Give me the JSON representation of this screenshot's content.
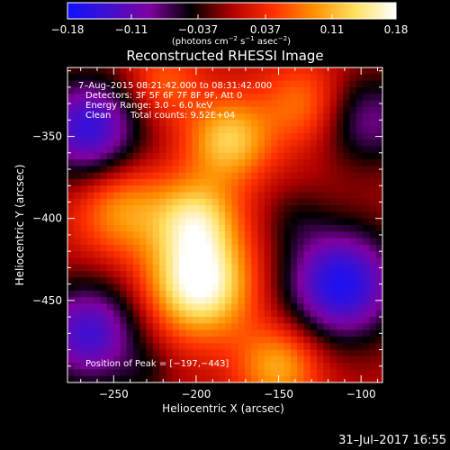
{
  "chart_data": {
    "type": "heatmap",
    "title": "Reconstructed RHESSI Image",
    "xlabel": "Heliocentric X (arcsec)",
    "ylabel": "Heliocentric Y (arcsec)",
    "xlim": [
      -278,
      -87
    ],
    "ylim": [
      -500,
      -308
    ],
    "x_ticks": [
      -250,
      -200,
      -150,
      -100
    ],
    "x_tick_labels": [
      "−250",
      "−200",
      "−150",
      "−100"
    ],
    "y_ticks": [
      -350,
      -400,
      -450
    ],
    "y_tick_labels": [
      "−350",
      "−400",
      "−450"
    ],
    "colorbar": {
      "range": [
        -0.18,
        0.18
      ],
      "colors": [
        "#1010ff",
        "#4010d0",
        "#8000a0",
        "#000000",
        "#b00000",
        "#ff3000",
        "#ff9000",
        "#ffe060",
        "#ffffff"
      ],
      "ticks": [
        -0.18,
        -0.11,
        -0.037,
        0.037,
        0.11,
        0.18
      ],
      "tick_labels": [
        "−0.18",
        "−0.11",
        "−0.037",
        "0.037",
        "0.11",
        "0.18"
      ],
      "unit_text": "(photons cm",
      "unit_sup1": "−2",
      "unit_mid": " s",
      "unit_sup2": "−1",
      "unit_mid2": " asec",
      "unit_sup3": "−2",
      "unit_end": ")"
    },
    "annotations": {
      "time": "7–Aug–2015 08:21:42.000 to 08:31:42.000",
      "detectors": "Detectors: 3F 5F 6F 7F 8F 9F, Att 0",
      "energy": "Energy Range: 3.0 – 6.0 keV",
      "clean": "Clean",
      "counts": "Total counts: 9.52E+04",
      "peak": "Position of Peak = [−197,−443]"
    },
    "peak": [
      -197,
      -443
    ],
    "sources": [
      {
        "x": -198,
        "y": -440,
        "amp": 0.18,
        "sigma": 22
      },
      {
        "x": -200,
        "y": -400,
        "amp": 0.12,
        "sigma": 18
      },
      {
        "x": -180,
        "y": -352,
        "amp": 0.12,
        "sigma": 18
      },
      {
        "x": -245,
        "y": -395,
        "amp": 0.09,
        "sigma": 20
      },
      {
        "x": -150,
        "y": -490,
        "amp": 0.1,
        "sigma": 18
      },
      {
        "x": -135,
        "y": -330,
        "amp": 0.07,
        "sigma": 18
      },
      {
        "x": -220,
        "y": -318,
        "amp": 0.06,
        "sigma": 16
      },
      {
        "x": -265,
        "y": -345,
        "amp": -0.15,
        "sigma": 22
      },
      {
        "x": -112,
        "y": -440,
        "amp": -0.17,
        "sigma": 24
      },
      {
        "x": -265,
        "y": -470,
        "amp": -0.14,
        "sigma": 22
      },
      {
        "x": -95,
        "y": -340,
        "amp": -0.09,
        "sigma": 20
      },
      {
        "x": -140,
        "y": -400,
        "amp": -0.03,
        "sigma": 14
      },
      {
        "x": -230,
        "y": -495,
        "amp": -0.03,
        "sigma": 12
      }
    ],
    "bg": 0.005
  },
  "footer": {
    "date": "31–Jul–2017 16:55"
  }
}
